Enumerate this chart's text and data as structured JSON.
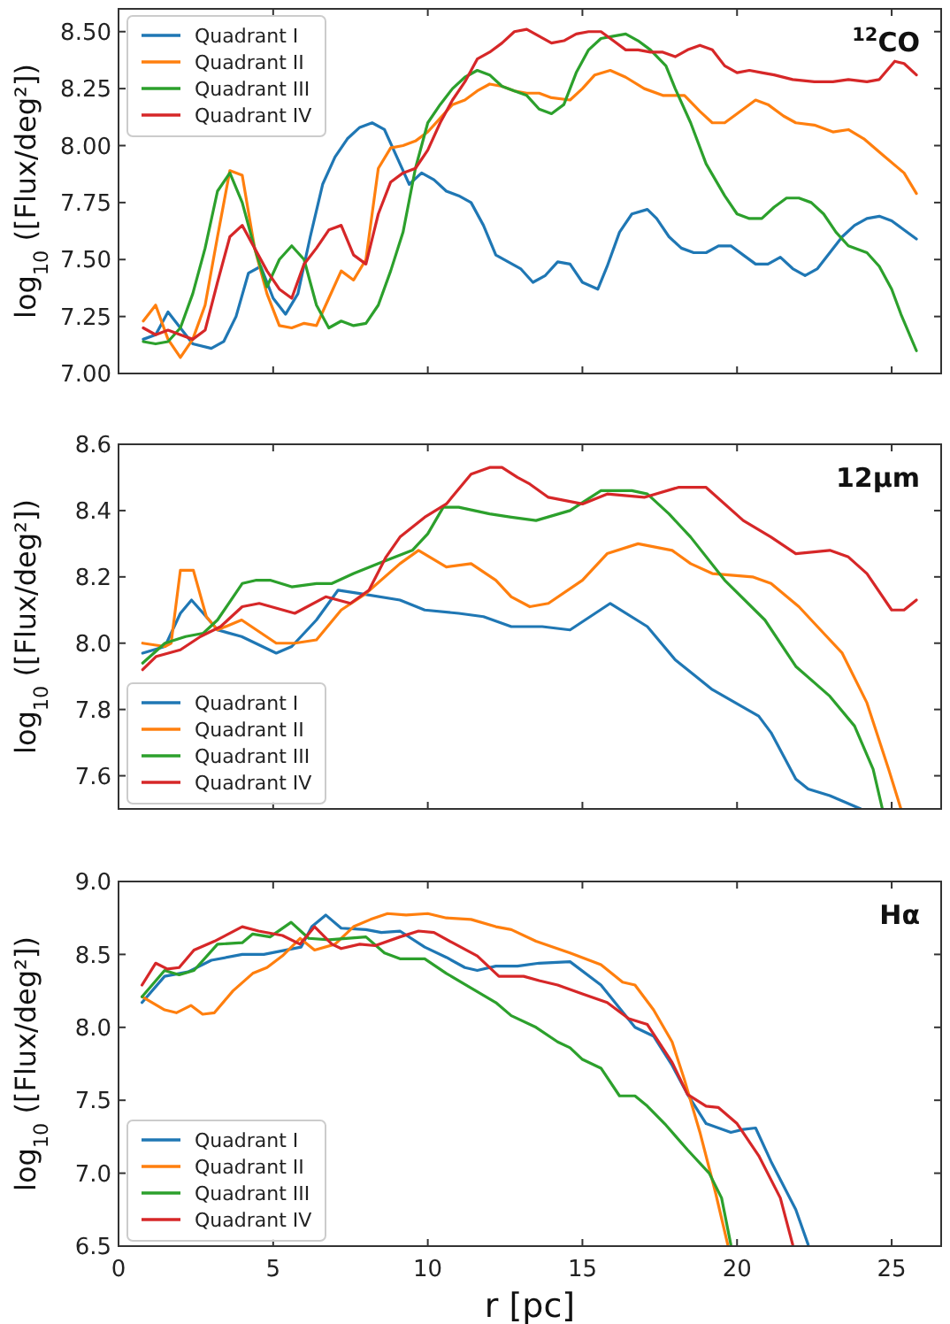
{
  "chart_data": [
    {
      "type": "line",
      "title": "$^{12}$CO",
      "ylabel": "log$_{10}$ ([Flux/deg²])",
      "xlim": [
        0,
        26.6
      ],
      "xticks": [
        0,
        5,
        10,
        15,
        20,
        25
      ],
      "ylim": [
        7.0,
        8.6
      ],
      "yticks": [
        {
          "value": 7.0,
          "label": "7.00"
        },
        {
          "value": 7.25,
          "label": "7.25"
        },
        {
          "value": 7.5,
          "label": "7.50"
        },
        {
          "value": 7.75,
          "label": "7.75"
        },
        {
          "value": 8.0,
          "label": "8.00"
        },
        {
          "value": 8.25,
          "label": "8.25"
        },
        {
          "value": 8.5,
          "label": "8.50"
        }
      ],
      "tick_labels": "y",
      "legend": "top left",
      "grid": false,
      "series": [
        {
          "name": "Quadrant I",
          "color": "#1f77b4",
          "x": [
            0.8,
            1.2,
            1.6,
            2.0,
            2.4,
            3.0,
            3.4,
            3.8,
            4.2,
            4.6,
            5.0,
            5.4,
            5.8,
            6.2,
            6.6,
            7.0,
            7.4,
            7.8,
            8.2,
            8.6,
            9.0,
            9.4,
            9.8,
            10.2,
            10.6,
            11.0,
            11.4,
            11.8,
            12.2,
            12.6,
            13.0,
            13.4,
            13.8,
            14.2,
            14.6,
            15.0,
            15.5,
            15.8,
            16.2,
            16.6,
            17.1,
            17.4,
            17.8,
            18.2,
            18.6,
            19.0,
            19.4,
            19.8,
            20.2,
            20.6,
            21.0,
            21.4,
            21.8,
            22.2,
            22.6,
            23.0,
            23.4,
            23.8,
            24.2,
            24.6,
            25.0,
            25.4,
            25.8
          ],
          "values": [
            7.15,
            7.17,
            7.27,
            7.2,
            7.13,
            7.11,
            7.14,
            7.25,
            7.44,
            7.47,
            7.33,
            7.26,
            7.35,
            7.6,
            7.83,
            7.95,
            8.03,
            8.08,
            8.1,
            8.07,
            7.95,
            7.83,
            7.88,
            7.85,
            7.8,
            7.78,
            7.75,
            7.65,
            7.52,
            7.49,
            7.46,
            7.4,
            7.43,
            7.49,
            7.48,
            7.4,
            7.37,
            7.47,
            7.62,
            7.7,
            7.72,
            7.68,
            7.6,
            7.55,
            7.53,
            7.53,
            7.56,
            7.56,
            7.52,
            7.48,
            7.48,
            7.51,
            7.46,
            7.43,
            7.46,
            7.53,
            7.6,
            7.65,
            7.68,
            7.69,
            7.67,
            7.63,
            7.59
          ]
        },
        {
          "name": "Quadrant II",
          "color": "#ff7f0e",
          "x": [
            0.8,
            1.2,
            1.6,
            2.0,
            2.4,
            2.8,
            3.2,
            3.6,
            4.0,
            4.4,
            4.8,
            5.2,
            5.6,
            6.0,
            6.4,
            6.8,
            7.2,
            7.6,
            8.0,
            8.4,
            8.8,
            9.2,
            9.6,
            10.0,
            10.4,
            10.8,
            11.2,
            11.6,
            12.0,
            12.4,
            12.8,
            13.2,
            13.6,
            14.0,
            14.6,
            15.0,
            15.4,
            15.9,
            16.4,
            17.0,
            17.6,
            18.3,
            18.8,
            19.2,
            19.6,
            20.0,
            20.6,
            21.0,
            21.5,
            21.9,
            22.5,
            23.1,
            23.6,
            24.1,
            24.7,
            25.4,
            25.8
          ],
          "values": [
            7.23,
            7.3,
            7.15,
            7.07,
            7.15,
            7.3,
            7.6,
            7.89,
            7.87,
            7.55,
            7.35,
            7.21,
            7.2,
            7.22,
            7.21,
            7.33,
            7.45,
            7.41,
            7.5,
            7.9,
            7.99,
            8.0,
            8.02,
            8.06,
            8.12,
            8.18,
            8.2,
            8.24,
            8.27,
            8.26,
            8.24,
            8.23,
            8.23,
            8.21,
            8.2,
            8.25,
            8.31,
            8.33,
            8.3,
            8.25,
            8.22,
            8.22,
            8.15,
            8.1,
            8.1,
            8.14,
            8.2,
            8.18,
            8.13,
            8.1,
            8.09,
            8.06,
            8.07,
            8.03,
            7.96,
            7.88,
            7.79
          ]
        },
        {
          "name": "Quadrant III",
          "color": "#2ca02c",
          "x": [
            0.8,
            1.2,
            1.6,
            2.0,
            2.4,
            2.8,
            3.2,
            3.6,
            4.0,
            4.4,
            4.8,
            5.2,
            5.6,
            6.0,
            6.4,
            6.8,
            7.2,
            7.6,
            8.0,
            8.4,
            8.8,
            9.2,
            9.6,
            10.0,
            10.4,
            10.8,
            11.2,
            11.6,
            12.0,
            12.4,
            12.8,
            13.2,
            13.6,
            14.0,
            14.4,
            14.8,
            15.2,
            15.6,
            16.0,
            16.4,
            16.8,
            17.2,
            17.7,
            18.0,
            18.5,
            19.0,
            19.6,
            20.0,
            20.4,
            20.8,
            21.2,
            21.6,
            22.0,
            22.4,
            22.8,
            23.2,
            23.6,
            24.2,
            24.6,
            25.0,
            25.3,
            25.8
          ],
          "values": [
            7.14,
            7.13,
            7.14,
            7.2,
            7.35,
            7.55,
            7.8,
            7.88,
            7.75,
            7.55,
            7.38,
            7.5,
            7.56,
            7.5,
            7.3,
            7.2,
            7.23,
            7.21,
            7.22,
            7.3,
            7.45,
            7.62,
            7.9,
            8.1,
            8.18,
            8.25,
            8.3,
            8.33,
            8.31,
            8.26,
            8.24,
            8.22,
            8.16,
            8.14,
            8.18,
            8.32,
            8.42,
            8.47,
            8.48,
            8.49,
            8.46,
            8.42,
            8.35,
            8.25,
            8.1,
            7.92,
            7.78,
            7.7,
            7.68,
            7.68,
            7.73,
            7.77,
            7.77,
            7.75,
            7.7,
            7.62,
            7.56,
            7.53,
            7.47,
            7.37,
            7.26,
            7.1
          ]
        },
        {
          "name": "Quadrant IV",
          "color": "#d62728",
          "x": [
            0.8,
            1.2,
            1.6,
            2.0,
            2.4,
            2.8,
            3.2,
            3.6,
            4.0,
            4.4,
            4.8,
            5.2,
            5.6,
            6.0,
            6.4,
            6.8,
            7.2,
            7.6,
            8.0,
            8.4,
            8.8,
            9.2,
            9.6,
            10.0,
            10.4,
            10.8,
            11.2,
            11.6,
            12.0,
            12.4,
            12.8,
            13.2,
            13.6,
            14.0,
            14.4,
            14.8,
            15.2,
            15.6,
            16.0,
            16.4,
            16.8,
            17.2,
            17.6,
            18.0,
            18.4,
            18.8,
            19.2,
            19.6,
            20.0,
            20.4,
            20.8,
            21.2,
            21.8,
            22.5,
            23.1,
            23.6,
            24.2,
            24.6,
            25.1,
            25.4,
            25.8
          ],
          "values": [
            7.2,
            7.17,
            7.19,
            7.17,
            7.15,
            7.19,
            7.4,
            7.6,
            7.65,
            7.55,
            7.45,
            7.37,
            7.33,
            7.48,
            7.55,
            7.63,
            7.65,
            7.52,
            7.48,
            7.7,
            7.84,
            7.88,
            7.9,
            7.98,
            8.1,
            8.2,
            8.28,
            8.38,
            8.41,
            8.45,
            8.5,
            8.51,
            8.48,
            8.45,
            8.46,
            8.49,
            8.5,
            8.5,
            8.46,
            8.42,
            8.42,
            8.41,
            8.41,
            8.39,
            8.42,
            8.44,
            8.42,
            8.35,
            8.32,
            8.33,
            8.32,
            8.31,
            8.29,
            8.28,
            8.28,
            8.29,
            8.28,
            8.29,
            8.37,
            8.36,
            8.31
          ]
        }
      ]
    },
    {
      "type": "line",
      "title": "12μm",
      "ylabel": "log$_{10}$ ([Flux/deg²])",
      "xlim": [
        0,
        26.6
      ],
      "xticks": [
        0,
        5,
        10,
        15,
        20,
        25
      ],
      "ylim": [
        7.5,
        8.6
      ],
      "yticks": [
        7.6,
        7.8,
        {
          "value": 8.0,
          "label": "8.0"
        },
        8.2,
        8.4,
        8.6
      ],
      "tick_labels": "y",
      "legend": "bottom left",
      "grid": false,
      "series": [
        {
          "name": "Quadrant I",
          "color": "#1f77b4",
          "x": [
            0.78,
            1.5,
            2.0,
            2.36,
            2.74,
            3.2,
            3.98,
            5.1,
            5.6,
            6.4,
            7.1,
            7.8,
            9.1,
            9.9,
            11.0,
            11.8,
            12.7,
            13.7,
            14.6,
            15.9,
            17.1,
            18.0,
            19.2,
            20.7,
            21.1,
            21.9,
            22.3,
            23.0,
            24.0
          ],
          "values": [
            7.97,
            7.99,
            8.09,
            8.13,
            8.09,
            8.04,
            8.02,
            7.97,
            7.99,
            8.07,
            8.16,
            8.15,
            8.13,
            8.1,
            8.09,
            8.08,
            8.05,
            8.05,
            8.04,
            8.12,
            8.05,
            7.95,
            7.86,
            7.78,
            7.73,
            7.59,
            7.56,
            7.54,
            7.5
          ]
        },
        {
          "name": "Quadrant II",
          "color": "#ff7f0e",
          "x": [
            0.78,
            1.5,
            1.7,
            2.0,
            2.42,
            2.84,
            3.2,
            3.98,
            5.1,
            5.7,
            6.4,
            7.2,
            8.0,
            9.1,
            9.7,
            10.6,
            11.4,
            12.2,
            12.7,
            13.3,
            13.9,
            15.0,
            15.8,
            16.8,
            17.9,
            18.5,
            19.2,
            20.5,
            21.1,
            22.0,
            22.6,
            23.4,
            24.2,
            24.9,
            25.3
          ],
          "values": [
            8.0,
            7.99,
            8.0,
            8.22,
            8.22,
            8.08,
            8.04,
            8.07,
            8.0,
            8.0,
            8.01,
            8.1,
            8.15,
            8.24,
            8.28,
            8.23,
            8.24,
            8.19,
            8.14,
            8.11,
            8.12,
            8.19,
            8.27,
            8.3,
            8.28,
            8.24,
            8.21,
            8.2,
            8.18,
            8.11,
            8.05,
            7.97,
            7.82,
            7.62,
            7.5
          ]
        },
        {
          "name": "Quadrant III",
          "color": "#2ca02c",
          "x": [
            0.78,
            1.5,
            2.17,
            2.74,
            3.2,
            4.0,
            4.46,
            4.9,
            5.6,
            6.4,
            6.9,
            7.6,
            8.4,
            9.5,
            10.0,
            10.5,
            11.0,
            12.0,
            12.7,
            13.5,
            14.6,
            15.6,
            16.6,
            17.1,
            17.8,
            18.5,
            19.6,
            20.9,
            21.9,
            23.0,
            23.8,
            24.4,
            24.7
          ],
          "values": [
            7.94,
            8.0,
            8.02,
            8.03,
            8.07,
            8.18,
            8.19,
            8.19,
            8.17,
            8.18,
            8.18,
            8.21,
            8.24,
            8.28,
            8.33,
            8.41,
            8.41,
            8.39,
            8.38,
            8.37,
            8.4,
            8.46,
            8.46,
            8.45,
            8.39,
            8.32,
            8.19,
            8.07,
            7.93,
            7.84,
            7.75,
            7.62,
            7.5
          ]
        },
        {
          "name": "Quadrant IV",
          "color": "#d62728",
          "x": [
            0.78,
            1.22,
            2.0,
            2.65,
            3.3,
            4.0,
            4.55,
            5.7,
            6.7,
            7.5,
            8.1,
            8.65,
            9.1,
            9.9,
            10.6,
            11.4,
            12.0,
            12.4,
            12.9,
            13.3,
            13.9,
            15.0,
            15.8,
            17.0,
            18.1,
            19.0,
            20.2,
            21.1,
            21.9,
            23.0,
            23.6,
            24.2,
            25.0,
            25.4,
            25.8
          ],
          "values": [
            7.92,
            7.96,
            7.98,
            8.02,
            8.05,
            8.11,
            8.12,
            8.09,
            8.14,
            8.12,
            8.16,
            8.26,
            8.32,
            8.38,
            8.42,
            8.51,
            8.53,
            8.53,
            8.5,
            8.48,
            8.44,
            8.42,
            8.45,
            8.44,
            8.47,
            8.47,
            8.37,
            8.32,
            8.27,
            8.28,
            8.26,
            8.21,
            8.1,
            8.1,
            8.13
          ]
        }
      ]
    },
    {
      "type": "line",
      "title": "Hα",
      "xlabel": "r [pc]",
      "ylabel": "log$_{10}$ ([Flux/deg²])",
      "xlim": [
        0,
        26.6
      ],
      "xticks": [
        0,
        5,
        10,
        15,
        20,
        25
      ],
      "ylim": [
        6.5,
        9.0
      ],
      "yticks": [
        6.5,
        {
          "value": 7.0,
          "label": "7.0"
        },
        7.5,
        {
          "value": 8.0,
          "label": "8.0"
        },
        8.5,
        {
          "value": 9.0,
          "label": "9.0"
        }
      ],
      "legend": "bottom left",
      "grid": false,
      "series": [
        {
          "name": "Quadrant I",
          "color": "#1f77b4",
          "x": [
            0.76,
            1.49,
            2.25,
            3.0,
            4.0,
            4.7,
            5.9,
            6.25,
            6.7,
            7.2,
            8.0,
            8.5,
            9.1,
            9.9,
            10.6,
            11.2,
            11.6,
            12.2,
            12.9,
            13.6,
            14.6,
            15.6,
            16.7,
            17.3,
            17.9,
            18.4,
            19.0,
            19.8,
            20.2,
            20.6,
            21.1,
            21.9,
            22.3
          ],
          "values": [
            8.17,
            8.35,
            8.38,
            8.46,
            8.5,
            8.5,
            8.55,
            8.69,
            8.77,
            8.68,
            8.67,
            8.65,
            8.66,
            8.55,
            8.48,
            8.41,
            8.39,
            8.42,
            8.42,
            8.44,
            8.45,
            8.29,
            8.0,
            7.94,
            7.74,
            7.54,
            7.34,
            7.28,
            7.3,
            7.31,
            7.08,
            6.75,
            6.51
          ]
        },
        {
          "name": "Quadrant II",
          "color": "#ff7f0e",
          "x": [
            0.76,
            1.49,
            1.87,
            2.34,
            2.72,
            3.1,
            3.7,
            4.34,
            4.8,
            5.3,
            5.87,
            6.34,
            7.0,
            7.6,
            8.15,
            8.7,
            9.3,
            10.0,
            10.6,
            11.4,
            12.2,
            12.7,
            13.5,
            14.6,
            15.6,
            16.3,
            16.7,
            17.3,
            17.9,
            18.3,
            18.8,
            19.3,
            19.7
          ],
          "values": [
            8.21,
            8.12,
            8.1,
            8.15,
            8.09,
            8.1,
            8.25,
            8.37,
            8.41,
            8.49,
            8.61,
            8.53,
            8.57,
            8.69,
            8.74,
            8.78,
            8.77,
            8.78,
            8.75,
            8.74,
            8.69,
            8.67,
            8.59,
            8.51,
            8.43,
            8.31,
            8.29,
            8.12,
            7.9,
            7.64,
            7.28,
            6.87,
            6.51
          ]
        },
        {
          "name": "Quadrant III",
          "color": "#2ca02c",
          "x": [
            0.76,
            1.49,
            1.96,
            2.44,
            3.2,
            4.0,
            4.34,
            4.9,
            5.58,
            6.15,
            6.8,
            8.0,
            8.6,
            9.1,
            9.9,
            10.6,
            11.4,
            12.2,
            12.7,
            13.5,
            14.2,
            14.6,
            15.0,
            15.6,
            16.2,
            16.7,
            17.1,
            17.7,
            18.4,
            19.1,
            19.5,
            19.8
          ],
          "values": [
            8.21,
            8.39,
            8.36,
            8.39,
            8.57,
            8.58,
            8.64,
            8.62,
            8.72,
            8.61,
            8.6,
            8.62,
            8.51,
            8.47,
            8.47,
            8.37,
            8.27,
            8.17,
            8.08,
            8.0,
            7.9,
            7.86,
            7.78,
            7.72,
            7.53,
            7.53,
            7.46,
            7.33,
            7.16,
            7.0,
            6.83,
            6.51
          ]
        },
        {
          "name": "Quadrant IV",
          "color": "#d62728",
          "x": [
            0.76,
            1.2,
            1.58,
            1.96,
            2.44,
            3.1,
            4.0,
            4.53,
            5.3,
            5.87,
            6.34,
            6.9,
            7.2,
            7.8,
            8.3,
            9.1,
            9.7,
            10.2,
            10.8,
            11.6,
            12.3,
            13.1,
            13.6,
            14.2,
            15.0,
            15.8,
            16.5,
            17.1,
            17.9,
            18.4,
            19.0,
            19.4,
            20.0,
            20.7,
            21.4,
            21.8
          ],
          "values": [
            8.29,
            8.44,
            8.4,
            8.41,
            8.53,
            8.59,
            8.69,
            8.66,
            8.63,
            8.57,
            8.69,
            8.57,
            8.54,
            8.57,
            8.56,
            8.62,
            8.66,
            8.65,
            8.58,
            8.49,
            8.35,
            8.35,
            8.32,
            8.29,
            8.23,
            8.17,
            8.06,
            8.02,
            7.76,
            7.54,
            7.46,
            7.45,
            7.34,
            7.12,
            6.83,
            6.51
          ]
        }
      ]
    }
  ]
}
